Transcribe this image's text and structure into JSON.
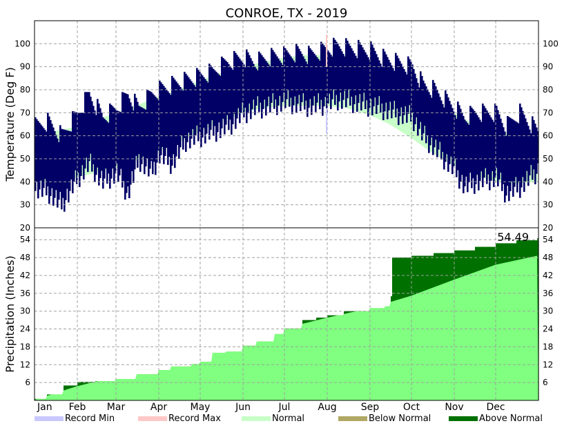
{
  "title": "CONROE, TX - 2019",
  "chart_data": [
    {
      "type": "bar",
      "panel": "temperature",
      "ylabel": "Temperature (Deg F)",
      "ylim": [
        20,
        110
      ],
      "yticks": [
        20,
        30,
        40,
        50,
        60,
        70,
        80,
        90,
        100
      ],
      "grid": true,
      "months": [
        "Jan",
        "Feb",
        "Mar",
        "Apr",
        "May",
        "Jun",
        "Jul",
        "Aug",
        "Sep",
        "Oct",
        "Nov",
        "Dec"
      ],
      "month_start_day": [
        1,
        32,
        60,
        91,
        121,
        152,
        182,
        213,
        244,
        274,
        305,
        335
      ],
      "normal_band": {
        "day": [
          1,
          15,
          32,
          46,
          60,
          74,
          91,
          105,
          121,
          135,
          152,
          166,
          182,
          196,
          213,
          227,
          244,
          258,
          274,
          288,
          305,
          319,
          335,
          349,
          365
        ],
        "low": [
          40,
          40,
          42,
          44,
          46,
          49,
          53,
          57,
          62,
          66,
          70,
          72,
          73,
          73,
          73,
          72,
          69,
          65,
          59,
          53,
          47,
          43,
          40,
          39,
          40
        ],
        "high": [
          61,
          62,
          64,
          67,
          70,
          73,
          77,
          80,
          84,
          87,
          90,
          92,
          94,
          95,
          95,
          95,
          91,
          87,
          81,
          76,
          70,
          65,
          62,
          61,
          61
        ]
      },
      "observed": {
        "anchor_day": [
          1,
          10,
          20,
          32,
          40,
          50,
          60,
          68,
          76,
          85,
          91,
          100,
          110,
          121,
          130,
          140,
          152,
          160,
          170,
          182,
          190,
          200,
          213,
          220,
          230,
          244,
          252,
          262,
          274,
          282,
          290,
          305,
          312,
          320,
          335,
          342,
          352,
          365
        ],
        "low_anchor": [
          37,
          36,
          30,
          42,
          48,
          40,
          44,
          35,
          50,
          44,
          52,
          48,
          58,
          60,
          62,
          64,
          70,
          72,
          73,
          75,
          74,
          73,
          74,
          76,
          75,
          73,
          72,
          70,
          68,
          60,
          55,
          45,
          38,
          40,
          42,
          35,
          38,
          45
        ],
        "high_anchor": [
          64,
          66,
          60,
          70,
          78,
          68,
          72,
          78,
          72,
          78,
          80,
          82,
          84,
          86,
          88,
          92,
          94,
          92,
          94,
          95,
          96,
          95,
          98,
          99,
          98,
          97,
          94,
          92,
          90,
          82,
          80,
          72,
          68,
          70,
          70,
          64,
          70,
          62
        ]
      },
      "record_max_mark": {
        "day": 212,
        "value": 104
      },
      "record_min_mark": {
        "day": 212,
        "value": 61
      }
    },
    {
      "type": "area",
      "panel": "precipitation",
      "ylabel": "Precipitation (Inches)",
      "ylim": [
        0,
        58
      ],
      "yticks": [
        6,
        12,
        18,
        24,
        30,
        36,
        42,
        48,
        54
      ],
      "grid": true,
      "annotation": "54.49",
      "normal_cumulative": {
        "day": [
          1,
          32,
          60,
          91,
          121,
          152,
          182,
          213,
          244,
          274,
          305,
          335,
          365
        ],
        "value": [
          0.2,
          4.8,
          8.0,
          11.0,
          14.8,
          19.4,
          24.2,
          27.8,
          31.0,
          35.2,
          40.6,
          45.6,
          48.6
        ]
      },
      "observed_cumulative": {
        "day": [
          1,
          10,
          22,
          32,
          45,
          60,
          75,
          91,
          100,
          115,
          121,
          130,
          140,
          152,
          162,
          175,
          182,
          195,
          205,
          213,
          225,
          244,
          255,
          259,
          260,
          274,
          290,
          305,
          320,
          335,
          350,
          365
        ],
        "value": [
          0.5,
          2.0,
          5.0,
          6.2,
          6.5,
          7.2,
          8.8,
          10.2,
          11.4,
          12.2,
          13.0,
          16.0,
          16.4,
          18.4,
          19.8,
          22.3,
          24.2,
          27.0,
          27.8,
          28.6,
          30.0,
          31.0,
          31.6,
          35.0,
          48.0,
          48.6,
          49.5,
          50.4,
          51.6,
          52.8,
          53.8,
          54.49
        ]
      }
    }
  ],
  "legend": [
    {
      "label": "Record Min",
      "color": "#c8c8ff"
    },
    {
      "label": "Record Max",
      "color": "#ffc8c8"
    },
    {
      "label": "Normal",
      "color": "#c8ffc8"
    },
    {
      "label": "Below Normal",
      "color": "#b0a864"
    },
    {
      "label": "Above Normal",
      "color": "#007000"
    }
  ],
  "colors": {
    "observed_temp": "#000066",
    "normal_band": "#c8ffc8",
    "normal_precip": "#80ff80",
    "above_normal": "#007000",
    "below_normal": "#b0a864",
    "grid": "#a0a0a0"
  }
}
